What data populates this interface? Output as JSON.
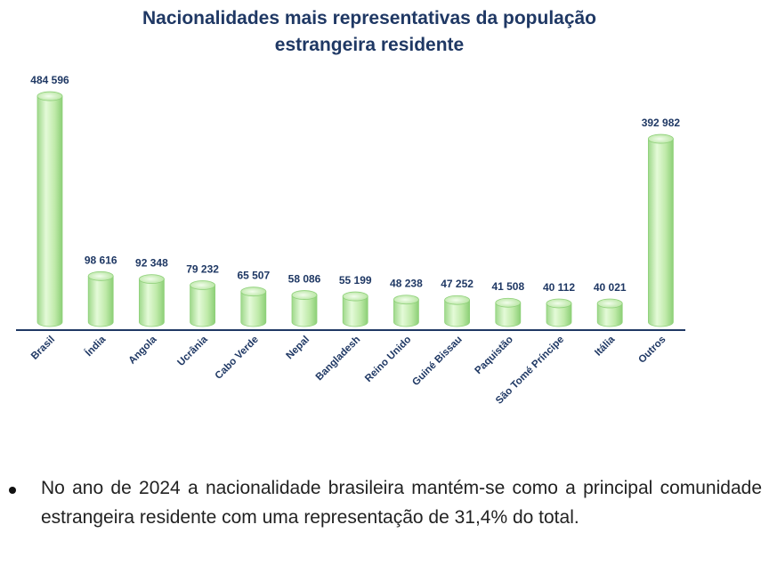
{
  "chart_data": {
    "type": "bar",
    "title_line1": "Nacionalidades mais representativas da população",
    "title_line2": "estrangeira residente",
    "categories": [
      "Brasil",
      "Índia",
      "Angola",
      "Ucrânia",
      "Cabo Verde",
      "Nepal",
      "Bangladesh",
      "Reino Unido",
      "Guiné Bissau",
      "Paquistão",
      "São Tomé Príncipe",
      "Itália",
      "Outros"
    ],
    "values": [
      484596,
      98616,
      92348,
      79232,
      65507,
      58086,
      55199,
      48238,
      47252,
      41508,
      40112,
      40021,
      392982
    ],
    "value_labels": [
      "484 596",
      "98 616",
      "92 348",
      "79 232",
      "65 507",
      "58 086",
      "55 199",
      "48 238",
      "47 252",
      "41 508",
      "40 112",
      "40 021",
      "392 982"
    ],
    "xlabel": "",
    "ylabel": "",
    "ylim": [
      0,
      500000
    ],
    "grid": false,
    "colors": {
      "bar": "#c6efb0",
      "bar_edge": "#8fd17a",
      "axis": "#1f3864",
      "label": "#1f3864"
    }
  },
  "notes": {
    "bullet": "No ano de 2024 a nacionalidade brasileira mantém-se como a principal comunidade estrangeira residente com uma representação de 31,4% do total."
  }
}
